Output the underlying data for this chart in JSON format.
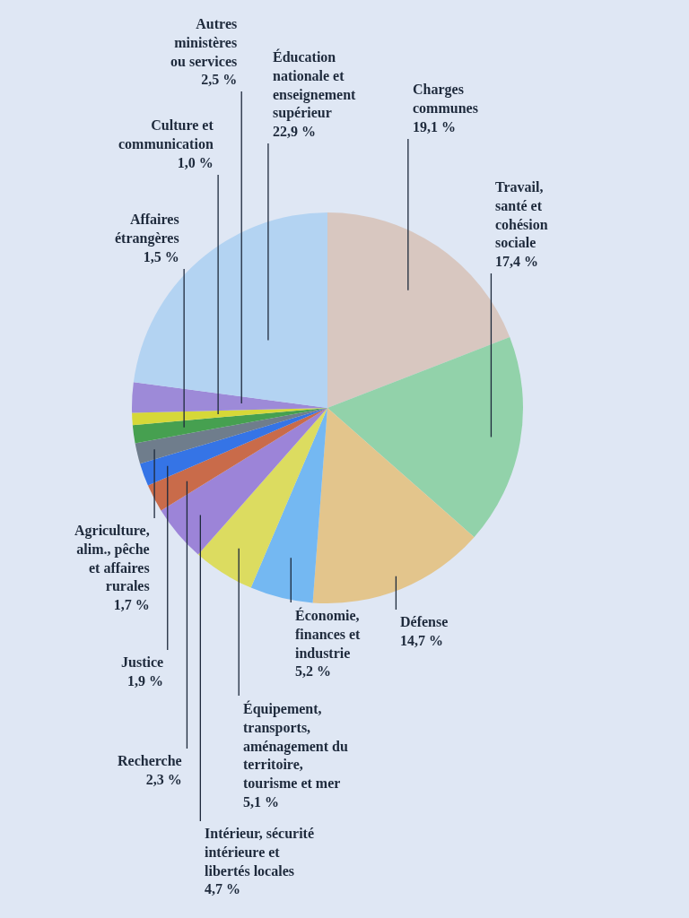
{
  "chart_data": {
    "type": "pie",
    "categories": [
      "Charges communes",
      "Travail, santé et cohésion sociale",
      "Défense",
      "Économie, finances et industrie",
      "Équipement, transports, aménagement du territoire, tourisme et mer",
      "Intérieur, sécurité intérieure et libertés locales",
      "Recherche",
      "Justice",
      "Agriculture, alim., pêche et affaires rurales",
      "Affaires étrangères",
      "Culture et communication",
      "Autres ministères ou services",
      "Éducation nationale et enseignement supérieur"
    ],
    "values": [
      19.1,
      17.4,
      14.7,
      5.2,
      5.1,
      4.7,
      2.3,
      1.9,
      1.7,
      1.5,
      1.0,
      2.5,
      22.9
    ],
    "value_labels": [
      "19,1 %",
      "17,4 %",
      "14,7 %",
      "5,2 %",
      "5,1 %",
      "4,7 %",
      "2,3 %",
      "1,9 %",
      "1,7 %",
      "1,5 %",
      "1,0 %",
      "2,5 %",
      "22,9 %"
    ],
    "colors": [
      "#d8c7c0",
      "#92d2aa",
      "#e3c58c",
      "#74b8f2",
      "#dcdc60",
      "#9c84d8",
      "#c96b4a",
      "#3574e6",
      "#6f7d8c",
      "#46a050",
      "#d6d838",
      "#9d8ad8",
      "#b3d3f2"
    ]
  }
}
